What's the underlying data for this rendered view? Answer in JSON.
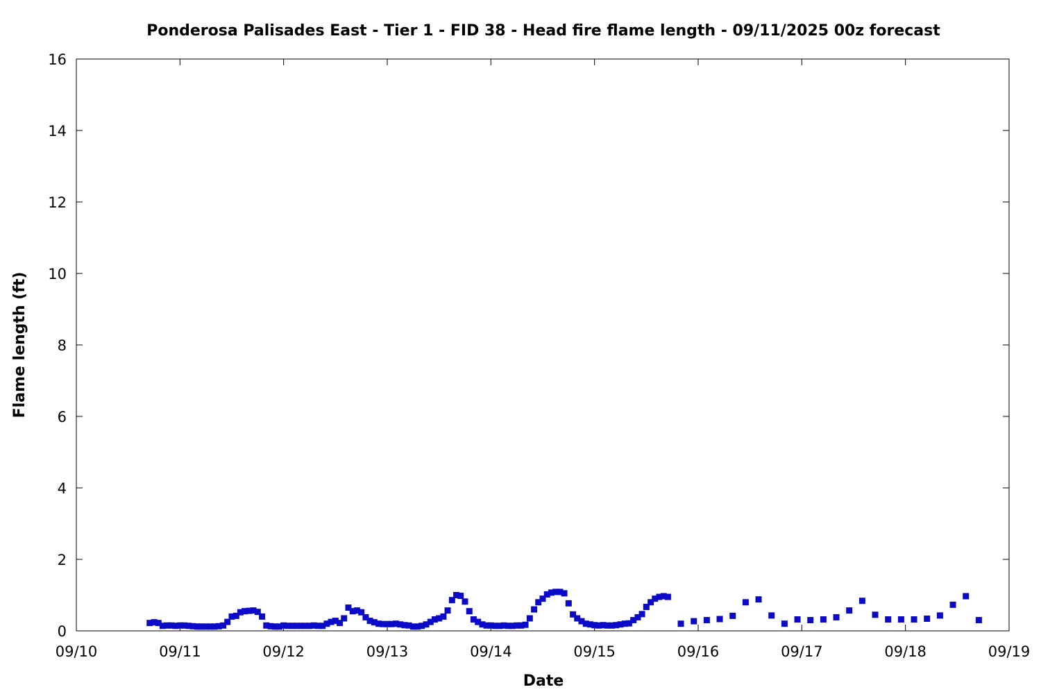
{
  "chart_data": {
    "type": "scatter",
    "title": "Ponderosa Palisades East - Tier 1 - FID 38 - Head fire flame length - 09/11/2025 00z forecast",
    "x_label": "Date",
    "y_label": "Flame length (ft)",
    "color": "#0a0ac8",
    "xlim": [
      0,
      9
    ],
    "xticks": [
      {
        "value": 0,
        "label": "09/10"
      },
      {
        "value": 1,
        "label": "09/11"
      },
      {
        "value": 2,
        "label": "09/12"
      },
      {
        "value": 3,
        "label": "09/13"
      },
      {
        "value": 4,
        "label": "09/14"
      },
      {
        "value": 5,
        "label": "09/15"
      },
      {
        "value": 6,
        "label": "09/16"
      },
      {
        "value": 7,
        "label": "09/17"
      },
      {
        "value": 8,
        "label": "09/18"
      },
      {
        "value": 9,
        "label": "09/19"
      }
    ],
    "ylim": [
      0,
      16
    ],
    "yticks": [
      0,
      2,
      4,
      6,
      8,
      10,
      12,
      14,
      16
    ],
    "x": [
      0.708,
      0.75,
      0.792,
      0.833,
      0.875,
      0.917,
      0.958,
      1,
      1.042,
      1.083,
      1.125,
      1.167,
      1.208,
      1.25,
      1.292,
      1.333,
      1.375,
      1.417,
      1.458,
      1.5,
      1.542,
      1.583,
      1.625,
      1.667,
      1.708,
      1.75,
      1.792,
      1.833,
      1.875,
      1.917,
      1.958,
      2,
      2.042,
      2.083,
      2.125,
      2.167,
      2.208,
      2.25,
      2.292,
      2.333,
      2.375,
      2.417,
      2.458,
      2.5,
      2.542,
      2.583,
      2.625,
      2.667,
      2.708,
      2.75,
      2.792,
      2.833,
      2.875,
      2.917,
      2.958,
      3,
      3.042,
      3.083,
      3.125,
      3.167,
      3.208,
      3.25,
      3.292,
      3.333,
      3.375,
      3.417,
      3.458,
      3.5,
      3.542,
      3.583,
      3.625,
      3.667,
      3.708,
      3.75,
      3.792,
      3.833,
      3.875,
      3.917,
      3.958,
      4,
      4.042,
      4.083,
      4.125,
      4.167,
      4.208,
      4.25,
      4.292,
      4.333,
      4.375,
      4.417,
      4.458,
      4.5,
      4.542,
      4.583,
      4.625,
      4.667,
      4.708,
      4.75,
      4.792,
      4.833,
      4.875,
      4.917,
      4.958,
      5,
      5.042,
      5.083,
      5.125,
      5.167,
      5.208,
      5.25,
      5.292,
      5.333,
      5.375,
      5.417,
      5.458,
      5.5,
      5.542,
      5.583,
      5.625,
      5.667,
      5.708,
      5.833,
      5.958,
      6.083,
      6.208,
      6.333,
      6.458,
      6.583,
      6.708,
      6.833,
      6.958,
      7.083,
      7.208,
      7.333,
      7.458,
      7.583,
      7.708,
      7.833,
      7.958,
      8.083,
      8.208,
      8.333,
      8.458,
      8.583,
      8.708
    ],
    "values": [
      0.22,
      0.24,
      0.22,
      0.14,
      0.15,
      0.15,
      0.14,
      0.15,
      0.15,
      0.14,
      0.13,
      0.12,
      0.12,
      0.12,
      0.12,
      0.12,
      0.13,
      0.15,
      0.25,
      0.4,
      0.42,
      0.52,
      0.55,
      0.56,
      0.57,
      0.53,
      0.4,
      0.15,
      0.13,
      0.12,
      0.12,
      0.15,
      0.14,
      0.14,
      0.14,
      0.14,
      0.14,
      0.14,
      0.15,
      0.14,
      0.14,
      0.2,
      0.25,
      0.28,
      0.22,
      0.35,
      0.65,
      0.55,
      0.57,
      0.52,
      0.38,
      0.28,
      0.24,
      0.2,
      0.19,
      0.19,
      0.19,
      0.2,
      0.18,
      0.16,
      0.15,
      0.12,
      0.12,
      0.14,
      0.18,
      0.25,
      0.32,
      0.35,
      0.4,
      0.57,
      0.86,
      1.0,
      0.98,
      0.82,
      0.55,
      0.32,
      0.25,
      0.18,
      0.15,
      0.15,
      0.14,
      0.14,
      0.15,
      0.14,
      0.14,
      0.15,
      0.15,
      0.17,
      0.35,
      0.6,
      0.8,
      0.9,
      1.02,
      1.07,
      1.09,
      1.09,
      1.05,
      0.77,
      0.46,
      0.35,
      0.27,
      0.2,
      0.18,
      0.16,
      0.15,
      0.16,
      0.15,
      0.15,
      0.16,
      0.18,
      0.2,
      0.21,
      0.3,
      0.38,
      0.47,
      0.67,
      0.8,
      0.9,
      0.95,
      0.97,
      0.95,
      0.2,
      0.27,
      0.3,
      0.33,
      0.42,
      0.8,
      0.88,
      0.43,
      0.2,
      0.32,
      0.3,
      0.32,
      0.38,
      0.57,
      0.84,
      0.45,
      0.32,
      0.32,
      0.32,
      0.34,
      0.43,
      0.73,
      0.97,
      0.3
    ]
  }
}
